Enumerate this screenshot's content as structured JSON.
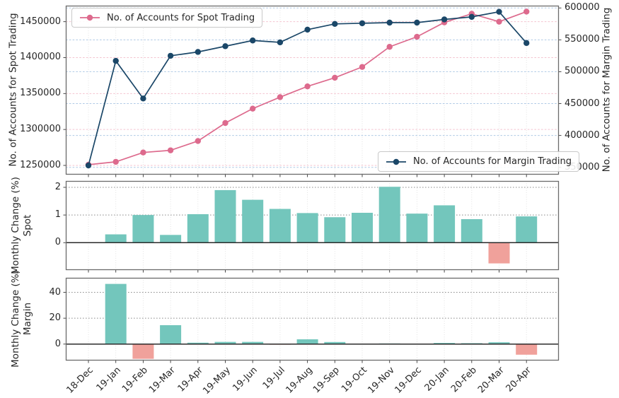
{
  "axes": {
    "top": {
      "left_label": "No. of Accounts for Spot Trading",
      "right_label": "No. of Accounts for Margin Trading",
      "left_tick_labels": [
        "1250000",
        "1300000",
        "1350000",
        "1400000",
        "1450000"
      ],
      "right_tick_labels": [
        "350000",
        "400000",
        "450000",
        "500000",
        "550000",
        "600000"
      ]
    },
    "mid": {
      "label_line1": "Monthly Change (%)",
      "label_line2": "Spot",
      "tick_labels": [
        "0",
        "1",
        "2"
      ]
    },
    "bot": {
      "label_line1": "Monthly Change (%)",
      "label_line2": "Margin",
      "tick_labels": [
        "0",
        "20",
        "40"
      ]
    }
  },
  "legends": {
    "spot": "No. of Accounts for Spot Trading",
    "margin": "No. of Accounts for Margin Trading"
  },
  "colors": {
    "spot_line": "#dd6a8d",
    "margin_line": "#1b4768",
    "bar_positive": "#73c6bc",
    "bar_negative": "#f0a19b",
    "grid_spot": "#f4c3cf",
    "grid_margin": "#aec9e5",
    "grid_gray": "#8f8f8f",
    "grid_vertical": "#e0e0e0",
    "panel_border": "#6b6b6b",
    "zero_line": "#2b2b2b",
    "tick_mark": "#333333",
    "text": "#262626"
  },
  "chart_data": [
    {
      "type": "line",
      "title": "",
      "categories": [
        "18-Dec",
        "19-Jan",
        "19-Feb",
        "19-Mar",
        "19-Apr",
        "19-May",
        "19-Jun",
        "19-Jul",
        "19-Aug",
        "19-Sep",
        "19-Oct",
        "19-Nov",
        "19-Dec",
        "20-Jan",
        "20-Feb",
        "20-Mar",
        "20-Apr"
      ],
      "series": [
        {
          "name": "No. of Accounts for Spot Trading",
          "yaxis": "left",
          "values": [
            1251000,
            1255000,
            1268000,
            1271000,
            1284000,
            1309000,
            1329000,
            1345000,
            1360000,
            1372000,
            1387000,
            1415000,
            1429000,
            1449000,
            1461000,
            1450000,
            1464000
          ]
        },
        {
          "name": "No. of Accounts for Margin Trading",
          "yaxis": "right",
          "values": [
            353000,
            517000,
            458000,
            525000,
            531000,
            540000,
            549000,
            546000,
            566000,
            575000,
            576000,
            577000,
            577000,
            582000,
            586000,
            594000,
            545000
          ]
        }
      ],
      "ylabel_left": "No. of Accounts for Spot Trading",
      "ylabel_right": "No. of Accounts for Margin Trading",
      "yticks_left": [
        1250000,
        1300000,
        1350000,
        1400000,
        1450000
      ],
      "yticks_right": [
        350000,
        400000,
        450000,
        500000,
        550000,
        600000
      ],
      "ylim_left": [
        1237200,
        1472300
      ],
      "ylim_right": [
        338600,
        603600
      ],
      "grid": true,
      "legend_positions": {
        "spot": "upper left",
        "margin": "lower right"
      }
    },
    {
      "type": "bar",
      "title": "",
      "categories": [
        "18-Dec",
        "19-Jan",
        "19-Feb",
        "19-Mar",
        "19-Apr",
        "19-May",
        "19-Jun",
        "19-Jul",
        "19-Aug",
        "19-Sep",
        "19-Oct",
        "19-Nov",
        "19-Dec",
        "20-Jan",
        "20-Feb",
        "20-Mar",
        "20-Apr"
      ],
      "values": [
        0,
        0.3,
        1.0,
        0.28,
        1.03,
        1.9,
        1.55,
        1.22,
        1.07,
        0.92,
        1.08,
        2.02,
        1.05,
        1.35,
        0.85,
        -0.75,
        0.95
      ],
      "xlabel": "",
      "ylabel": "Monthly Change (%) Spot",
      "yticks": [
        0,
        1,
        2
      ],
      "ylim": [
        -0.99,
        2.23
      ],
      "grid": true
    },
    {
      "type": "bar",
      "title": "",
      "categories": [
        "18-Dec",
        "19-Jan",
        "19-Feb",
        "19-Mar",
        "19-Apr",
        "19-May",
        "19-Jun",
        "19-Jul",
        "19-Aug",
        "19-Sep",
        "19-Oct",
        "19-Nov",
        "19-Dec",
        "20-Jan",
        "20-Feb",
        "20-Mar",
        "20-Apr"
      ],
      "values": [
        0,
        46.5,
        -11.4,
        14.6,
        1.1,
        1.7,
        1.7,
        -0.5,
        3.7,
        1.6,
        0.2,
        0.5,
        0.1,
        0.9,
        0.7,
        1.4,
        -8.2
      ],
      "xlabel": "",
      "ylabel": "Monthly Change (%) Margin",
      "yticks": [
        0,
        20,
        40
      ],
      "ylim": [
        -12.7,
        51.2
      ],
      "grid": true
    }
  ]
}
